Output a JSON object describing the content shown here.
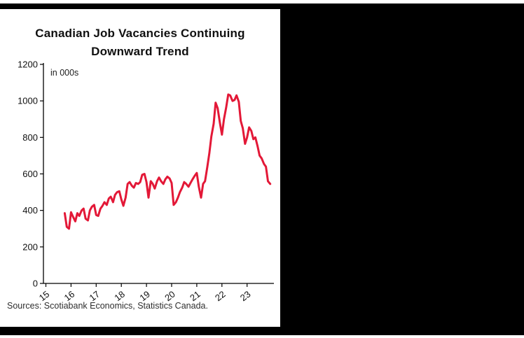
{
  "colors": {
    "frame": "#000000",
    "panel": "#ffffff",
    "line": "#e31837",
    "axis": "#000000"
  },
  "chart_data": {
    "type": "line",
    "title": "Canadian Job Vacancies Continuing Downward Trend",
    "units_label": "in 000s",
    "source": "Sources: Scotiabank Economics, Statistics Canada.",
    "x_ticks": [
      15,
      16,
      17,
      18,
      19,
      20,
      21,
      22,
      23
    ],
    "y_ticks": [
      0,
      200,
      400,
      600,
      800,
      1000,
      1200
    ],
    "ylim": [
      0,
      1200
    ],
    "xlim": [
      14.9,
      24.1
    ],
    "grid": false,
    "legend": "none",
    "line_color": "#e31837",
    "series": [
      {
        "name": "job-vacancies-000s",
        "x": [
          15.75,
          15.83,
          15.92,
          16.0,
          16.08,
          16.17,
          16.25,
          16.33,
          16.42,
          16.5,
          16.58,
          16.67,
          16.75,
          16.83,
          16.92,
          17.0,
          17.08,
          17.17,
          17.25,
          17.33,
          17.42,
          17.5,
          17.58,
          17.67,
          17.75,
          17.83,
          17.92,
          18.0,
          18.08,
          18.17,
          18.25,
          18.33,
          18.42,
          18.5,
          18.58,
          18.67,
          18.75,
          18.83,
          18.92,
          19.0,
          19.08,
          19.17,
          19.25,
          19.33,
          19.42,
          19.5,
          19.58,
          19.67,
          19.75,
          19.83,
          19.92,
          20.0,
          20.08,
          20.17,
          20.25,
          20.33,
          20.42,
          20.5,
          20.58,
          20.67,
          20.75,
          20.83,
          20.92,
          21.0,
          21.08,
          21.17,
          21.25,
          21.33,
          21.42,
          21.5,
          21.58,
          21.67,
          21.75,
          21.83,
          21.92,
          22.0,
          22.08,
          22.17,
          22.25,
          22.33,
          22.42,
          22.5,
          22.58,
          22.67,
          22.75,
          22.83,
          22.92,
          23.0,
          23.08,
          23.17,
          23.25,
          23.33,
          23.42,
          23.5,
          23.58,
          23.67,
          23.75,
          23.83,
          23.92
        ],
        "values": [
          385,
          310,
          300,
          390,
          365,
          340,
          385,
          370,
          400,
          410,
          355,
          345,
          400,
          420,
          430,
          375,
          370,
          410,
          425,
          445,
          430,
          465,
          475,
          445,
          485,
          500,
          505,
          460,
          425,
          470,
          545,
          555,
          535,
          525,
          550,
          545,
          555,
          595,
          600,
          555,
          470,
          560,
          545,
          520,
          560,
          580,
          560,
          545,
          570,
          585,
          575,
          550,
          430,
          445,
          470,
          500,
          525,
          555,
          545,
          530,
          550,
          570,
          590,
          605,
          530,
          470,
          545,
          560,
          640,
          715,
          805,
          875,
          990,
          960,
          880,
          815,
          900,
          965,
          1035,
          1030,
          1000,
          1005,
          1030,
          995,
          890,
          850,
          765,
          800,
          855,
          835,
          790,
          800,
          750,
          700,
          685,
          655,
          640,
          560,
          545
        ]
      }
    ]
  }
}
